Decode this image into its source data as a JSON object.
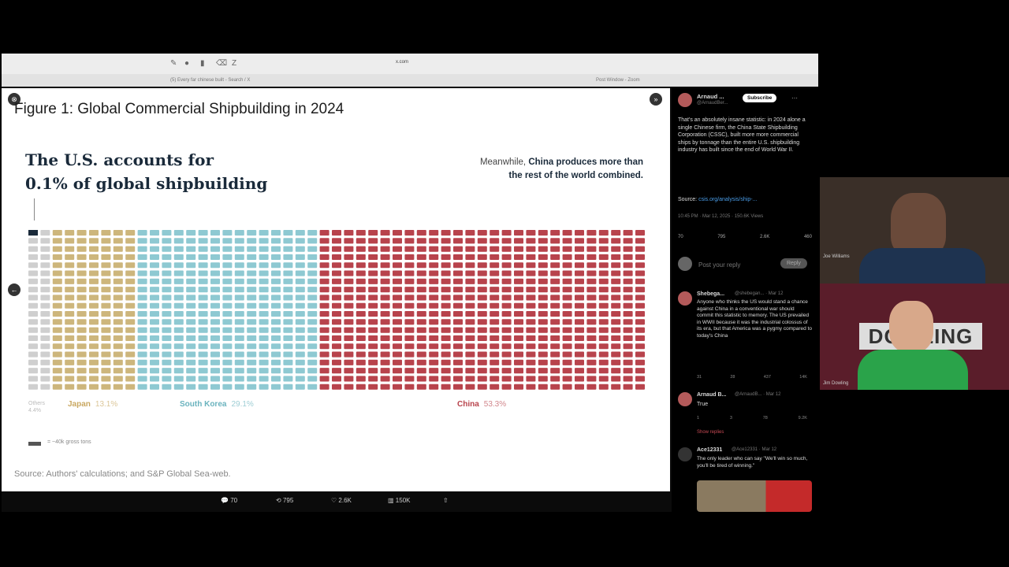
{
  "browser": {
    "url": "x.com",
    "tabs": [
      {
        "label": "(5) Every far chinese built - Search / X"
      },
      {
        "label": "Post Window - Zoom"
      }
    ]
  },
  "slide": {
    "title": "Figure 1: Global Commercial Shipbuilding in 2024",
    "headline_line1": "The U.S. accounts for",
    "headline_line2": "0.1% of global shipbuilding",
    "china_note_prefix": "Meanwhile, ",
    "china_note_bold": "China produces more than the rest of the world combined.",
    "legend_text": "= ~40k gross tons",
    "source": "Source: Authors' calculations; and S&P Global Sea-web."
  },
  "chart_data": {
    "type": "waffle",
    "unit": "gross tons",
    "series": [
      {
        "name": "Others",
        "value": 4.4,
        "color": "#cfcfcf"
      },
      {
        "name": "Japan",
        "value": 13.1,
        "color": "#cdb67c"
      },
      {
        "name": "South Korea",
        "value": 29.1,
        "color": "#8ec9d2"
      },
      {
        "name": "China",
        "value": 53.3,
        "color": "#b8434c"
      }
    ],
    "labels": [
      {
        "name": "Others",
        "pct": "4.4%"
      },
      {
        "name": "Japan",
        "pct": "13.1%"
      },
      {
        "name": "South Korea",
        "pct": "29.1%"
      },
      {
        "name": "China",
        "pct": "53.3%"
      }
    ]
  },
  "footer": {
    "replies": "70",
    "reposts": "795",
    "likes": "2.6K",
    "views": "150K"
  },
  "twitter": {
    "author": "Arnaud ...",
    "handle": "@ArnaudBer...",
    "subscribe": "Subscribe",
    "post_text": "That's an absolutely insane statistic: in 2024 alone a single Chinese firm, the China State Shipbuilding Corporation (CSSC), built more more commercial ships by tonnage than the entire U.S. shipbuilding industry has built since the end of World War II.",
    "source_label": "Source:",
    "source_link": "csis.org/analysis/ship-...",
    "meta": "10:45 PM · Mar 12, 2025 · 150.6K Views",
    "stats": [
      "70",
      "795",
      "2.6K",
      "460"
    ],
    "reply_placeholder": "Post your reply",
    "reply_button": "Reply",
    "replies": [
      {
        "name": "Shebega...",
        "handle": "@shebegan... · Mar 12",
        "text": "Anyone who thinks the US would stand a chance against China in a conventional war should commit this statistic to memory. The US prevailed in WWII because it was the industrial colossus of its era, but that America was a pygmy compared to today's China",
        "stats": [
          "31",
          "28",
          "437",
          "14K"
        ]
      },
      {
        "name": "Arnaud B...",
        "handle": "@ArnaudB... · Mar 12",
        "text": "True",
        "stats": [
          "1",
          "3",
          "78",
          "9.2K"
        ],
        "show_replies": "Show replies"
      },
      {
        "name": "Ace12331",
        "handle": "@Ace12331 · Mar 12",
        "text": "The only leader who can say \"We'll win so much, you'll be tired of winning.\""
      }
    ]
  },
  "cams": {
    "cam1_label": "Joe Williams",
    "cam2_label": "Jim Dowling",
    "cam2_sign": "DOWLING"
  }
}
